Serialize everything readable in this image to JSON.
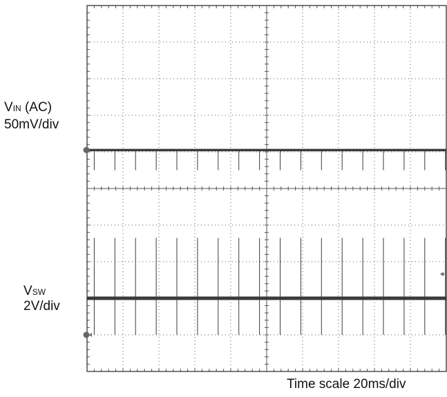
{
  "chart_data": {
    "type": "line",
    "title": "",
    "xlabel": "Time scale 20ms/div",
    "x_divisions": 10,
    "y_divisions": 10,
    "grid": true,
    "x_range_ms": [
      0,
      200
    ],
    "series": [
      {
        "name": "VIN (AC)",
        "scale": "50mV/div",
        "baseline_div": 6.05,
        "pulse_amplitude_div": -0.55,
        "pulse_times_ms": [
          4.0,
          15.5,
          27.0,
          38.5,
          50.0,
          61.5,
          73.0,
          84.5,
          96.0,
          107.5,
          119.0,
          130.5,
          142.0,
          153.5,
          165.0,
          176.5,
          188.0,
          199.5
        ]
      },
      {
        "name": "VSW",
        "scale": "2V/div",
        "baseline_div": 2.0,
        "pulse_amplitude_div": 1.65,
        "pulse_undershoot_div": -1.0,
        "pulse_times_ms": [
          4.0,
          15.5,
          27.0,
          38.5,
          50.0,
          61.5,
          73.0,
          84.5,
          96.0,
          107.5,
          119.0,
          130.5,
          142.0,
          153.5,
          165.0,
          176.5,
          188.0,
          199.5
        ]
      }
    ]
  },
  "labels": {
    "vin_main": "V",
    "vin_sub": "IN",
    "vin_suffix": " (AC)",
    "vin_scale": "50mV/div",
    "vsw_main": "V",
    "vsw_sub": "SW",
    "vsw_scale": "2V/div",
    "time_scale": "Time  scale  20ms/div"
  },
  "colors": {
    "grid": "#555555",
    "trace": "#3a3a3a",
    "border": "#222222",
    "marker": "#666666"
  }
}
